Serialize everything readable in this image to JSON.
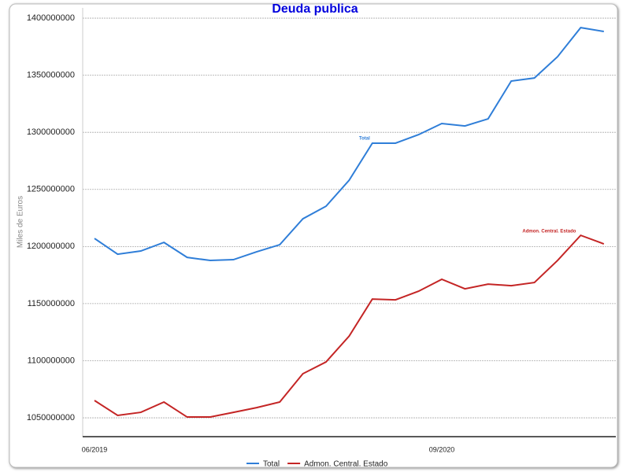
{
  "chart_data": {
    "type": "line",
    "title": "Deuda publica",
    "y_label": "Miles de Euros",
    "categories": [
      "06/2019",
      null,
      null,
      null,
      null,
      null,
      null,
      null,
      null,
      null,
      null,
      null,
      null,
      null,
      null,
      "09/2020",
      null,
      null,
      null,
      null,
      null,
      null,
      null
    ],
    "series": [
      {
        "name": "Total",
        "color": "#2f7ed8",
        "values": [
          1207100000,
          1193300000,
          1196100000,
          1203600000,
          1190500000,
          1187800000,
          1188500000,
          1195400000,
          1201600000,
          1224300000,
          1235300000,
          1258100000,
          1290500000,
          1290500000,
          1298000000,
          1307700000,
          1305600000,
          1311800000,
          1344900000,
          1347600000,
          1366200000,
          1391700000,
          1388300000
        ]
      },
      {
        "name": "Admon. Central. Estado",
        "color": "#c42525",
        "values": [
          1065200000,
          1052100000,
          1054800000,
          1063800000,
          1050700000,
          1050700000,
          1054800000,
          1058900000,
          1063800000,
          1088600000,
          1098900000,
          1121600000,
          1154000000,
          1153300000,
          1160900000,
          1171300000,
          1163000000,
          1167100000,
          1165700000,
          1168500000,
          1187800000,
          1209800000,
          1202300000
        ]
      }
    ],
    "ylim": [
      1033500000,
      1409000000
    ],
    "yticks": [
      1050000000,
      1100000000,
      1150000000,
      1200000000,
      1250000000,
      1300000000,
      1350000000,
      1400000000
    ],
    "grid": true,
    "legend": "bottom"
  }
}
